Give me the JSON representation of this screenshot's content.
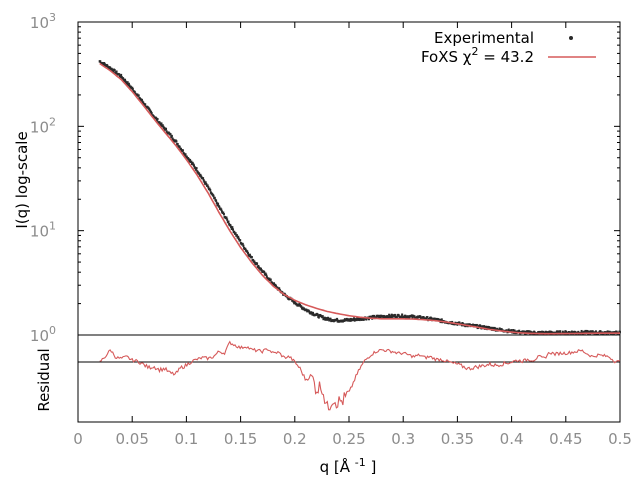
{
  "chart_data": {
    "type": "line",
    "upper_panel": {
      "xlabel": "q [Å -1 ]",
      "ylabel": "I(q) log-scale",
      "xlim": [
        0,
        0.5
      ],
      "ylim": [
        1,
        1000
      ],
      "yscale": "log",
      "x_ticks": [
        "0",
        "0.05",
        "0.1",
        "0.15",
        "0.2",
        "0.25",
        "0.3",
        "0.35",
        "0.4",
        "0.45",
        "0.5"
      ],
      "y_ticks": [
        {
          "base": "10",
          "exp": "0"
        },
        {
          "base": "10",
          "exp": "1"
        },
        {
          "base": "10",
          "exp": "2"
        },
        {
          "base": "10",
          "exp": "3"
        }
      ],
      "legend_position": "top-right",
      "series": [
        {
          "name": "Experimental",
          "color": "#2a2a2a",
          "style": "points",
          "x": [
            0.02,
            0.03,
            0.04,
            0.05,
            0.06,
            0.07,
            0.08,
            0.09,
            0.1,
            0.11,
            0.12,
            0.13,
            0.14,
            0.15,
            0.16,
            0.17,
            0.18,
            0.19,
            0.2,
            0.21,
            0.22,
            0.23,
            0.24,
            0.25,
            0.26,
            0.27,
            0.28,
            0.29,
            0.3,
            0.31,
            0.32,
            0.33,
            0.34,
            0.35,
            0.36,
            0.37,
            0.38,
            0.39,
            0.4,
            0.41,
            0.42,
            0.43,
            0.44,
            0.45,
            0.46,
            0.47,
            0.48,
            0.49,
            0.5
          ],
          "y": [
            420,
            360,
            300,
            230,
            170,
            125,
            95,
            72,
            52,
            38,
            26,
            17,
            11.5,
            7.8,
            5.5,
            4.1,
            3.1,
            2.45,
            2.05,
            1.75,
            1.55,
            1.42,
            1.38,
            1.39,
            1.43,
            1.47,
            1.5,
            1.52,
            1.52,
            1.49,
            1.45,
            1.4,
            1.34,
            1.29,
            1.24,
            1.2,
            1.16,
            1.12,
            1.085,
            1.06,
            1.05,
            1.048,
            1.05,
            1.055,
            1.06,
            1.058,
            1.055,
            1.05,
            1.045
          ]
        },
        {
          "name": "FoXS",
          "legend_label": "FoXS χ",
          "legend_sup": "2",
          "legend_suffix": " = 43.2",
          "color": "#d65a5a",
          "style": "line",
          "x": [
            0.02,
            0.03,
            0.04,
            0.05,
            0.06,
            0.07,
            0.08,
            0.09,
            0.1,
            0.11,
            0.12,
            0.13,
            0.14,
            0.15,
            0.16,
            0.17,
            0.18,
            0.19,
            0.2,
            0.21,
            0.22,
            0.23,
            0.24,
            0.25,
            0.26,
            0.27,
            0.28,
            0.29,
            0.3,
            0.31,
            0.32,
            0.33,
            0.34,
            0.35,
            0.36,
            0.37,
            0.38,
            0.39,
            0.4,
            0.41,
            0.42,
            0.43,
            0.44,
            0.45,
            0.46,
            0.47,
            0.48,
            0.49,
            0.5
          ],
          "y": [
            400,
            340,
            280,
            215,
            160,
            118,
            88,
            66,
            48,
            34,
            23,
            15,
            10,
            6.9,
            5.0,
            3.75,
            2.95,
            2.45,
            2.15,
            1.95,
            1.8,
            1.68,
            1.6,
            1.53,
            1.48,
            1.45,
            1.43,
            1.43,
            1.43,
            1.42,
            1.4,
            1.37,
            1.33,
            1.28,
            1.23,
            1.18,
            1.13,
            1.095,
            1.065,
            1.045,
            1.035,
            1.03,
            1.03,
            1.032,
            1.035,
            1.038,
            1.04,
            1.04,
            1.04
          ]
        }
      ]
    },
    "lower_panel": {
      "ylabel": "Residual",
      "reference_line": true,
      "residual_color": "#d65a5a",
      "x": [
        0.02,
        0.025,
        0.03,
        0.035,
        0.04,
        0.045,
        0.05,
        0.055,
        0.06,
        0.065,
        0.07,
        0.075,
        0.08,
        0.085,
        0.09,
        0.095,
        0.1,
        0.105,
        0.11,
        0.115,
        0.12,
        0.125,
        0.13,
        0.135,
        0.14,
        0.145,
        0.15,
        0.155,
        0.16,
        0.165,
        0.17,
        0.175,
        0.18,
        0.185,
        0.19,
        0.195,
        0.2,
        0.205,
        0.21,
        0.215,
        0.22,
        0.225,
        0.23,
        0.235,
        0.24,
        0.245,
        0.25,
        0.255,
        0.26,
        0.265,
        0.27,
        0.275,
        0.28,
        0.285,
        0.29,
        0.295,
        0.3,
        0.305,
        0.31,
        0.315,
        0.32,
        0.325,
        0.33,
        0.335,
        0.34,
        0.345,
        0.35,
        0.355,
        0.36,
        0.365,
        0.37,
        0.375,
        0.38,
        0.385,
        0.39,
        0.395,
        0.4,
        0.405,
        0.41,
        0.415,
        0.42,
        0.425,
        0.43,
        0.435,
        0.44,
        0.445,
        0.45,
        0.455,
        0.46,
        0.465,
        0.47,
        0.475,
        0.48,
        0.485,
        0.49,
        0.495,
        0.5
      ],
      "residual": [
        0.0,
        0.6,
        1.4,
        0.5,
        0.4,
        0.6,
        0.2,
        0.1,
        -0.2,
        -0.5,
        -0.4,
        -0.7,
        -0.6,
        -1.0,
        -1.1,
        -0.5,
        -0.3,
        0.1,
        0.3,
        0.5,
        0.4,
        0.6,
        1.2,
        1.0,
        2.2,
        1.9,
        1.6,
        1.8,
        1.4,
        1.3,
        1.2,
        1.5,
        1.0,
        1.1,
        0.5,
        0.6,
        0.0,
        -0.6,
        -1.6,
        -1.2,
        -2.4,
        -2.1,
        -4.2,
        -3.2,
        -3.6,
        -3.4,
        -2.8,
        -1.6,
        -0.6,
        0.2,
        0.8,
        1.2,
        1.4,
        1.3,
        1.2,
        1.0,
        1.0,
        0.8,
        0.6,
        0.8,
        0.5,
        0.6,
        0.3,
        0.3,
        0.1,
        -0.1,
        -0.2,
        -0.4,
        -0.6,
        -0.5,
        -0.4,
        -0.3,
        -0.2,
        -0.3,
        -0.2,
        -0.1,
        0.0,
        0.2,
        0.1,
        0.3,
        0.2,
        0.6,
        0.4,
        1.1,
        0.9,
        1.0,
        1.0,
        1.1,
        1.2,
        1.3,
        0.9,
        0.6,
        0.8,
        0.7,
        0.6,
        0.1,
        0.0
      ],
      "ylim": [
        -5,
        2.5
      ]
    }
  }
}
